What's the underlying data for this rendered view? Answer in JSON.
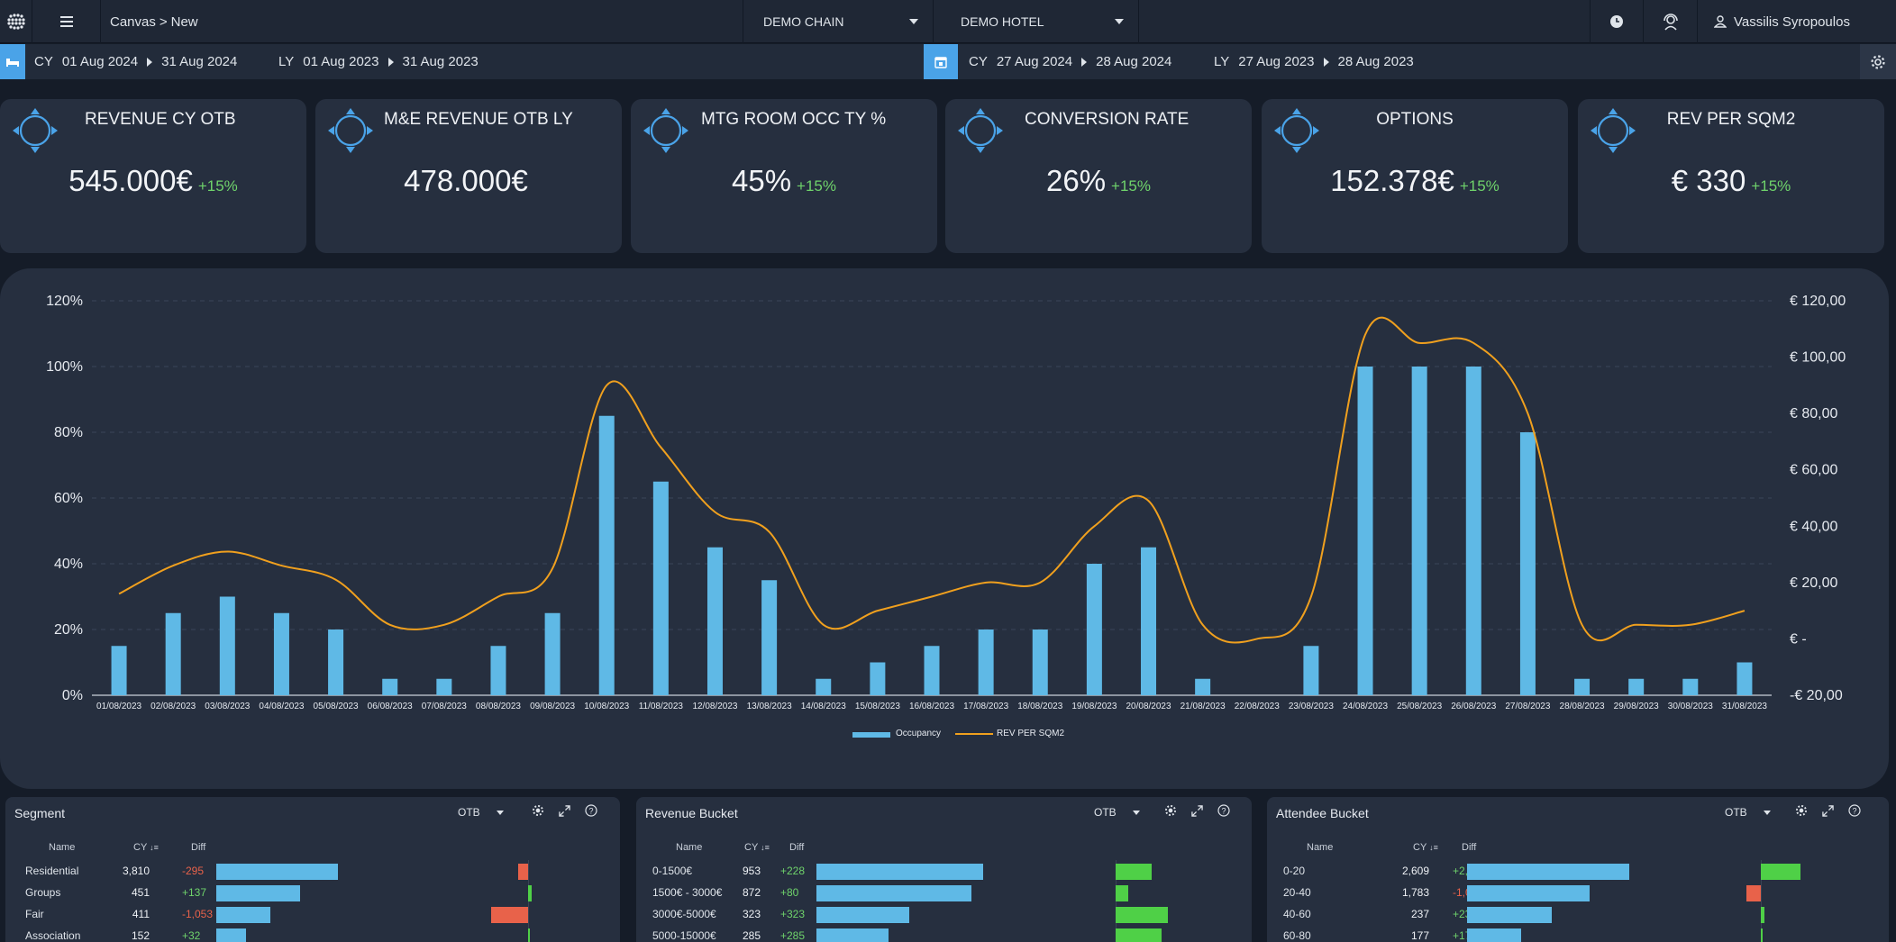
{
  "topbar": {
    "breadcrumb_root": "Canvas",
    "breadcrumb_sep": ">",
    "breadcrumb_current": "New",
    "chain_select": "DEMO CHAIN",
    "hotel_select": "DEMO HOTEL",
    "user_name": "Vassilis Syropoulos"
  },
  "datebar": {
    "left": {
      "cy_label": "CY",
      "cy_from": "01 Aug 2024",
      "cy_to": "31 Aug 2024",
      "ly_label": "LY",
      "ly_from": "01 Aug 2023",
      "ly_to": "31 Aug 2023"
    },
    "right": {
      "cy_label": "CY",
      "cy_from": "27 Aug 2024",
      "cy_to": "28 Aug 2024",
      "ly_label": "LY",
      "ly_from": "27 Aug 2023",
      "ly_to": "28 Aug 2023"
    }
  },
  "kpis": [
    {
      "label": "REVENUE CY OTB",
      "value": "545.000€",
      "change": "+15%"
    },
    {
      "label": "M&E REVENUE OTB LY",
      "value": "478.000€",
      "change": ""
    },
    {
      "label": "MTG ROOM OCC TY %",
      "value": "45%",
      "change": "+15%"
    },
    {
      "label": "CONVERSION RATE",
      "value": "26%",
      "change": "+15%"
    },
    {
      "label": "OPTIONS",
      "value": "152.378€",
      "change": "+15%"
    },
    {
      "label": "REV PER SQM2",
      "value": "€ 330",
      "change": "+15%"
    }
  ],
  "chart_data": {
    "type": "bar",
    "categories": [
      "01/08/2023",
      "02/08/2023",
      "03/08/2023",
      "04/08/2023",
      "05/08/2023",
      "06/08/2023",
      "07/08/2023",
      "08/08/2023",
      "09/08/2023",
      "10/08/2023",
      "11/08/2023",
      "12/08/2023",
      "13/08/2023",
      "14/08/2023",
      "15/08/2023",
      "16/08/2023",
      "17/08/2023",
      "18/08/2023",
      "19/08/2023",
      "20/08/2023",
      "21/08/2023",
      "22/08/2023",
      "23/08/2023",
      "24/08/2023",
      "25/08/2023",
      "26/08/2023",
      "27/08/2023",
      "28/08/2023",
      "29/08/2023",
      "30/08/2023",
      "31/08/2023"
    ],
    "series": [
      {
        "name": "Occupancy",
        "type": "bar",
        "axis": "left",
        "color": "#5fb9e6",
        "values": [
          15,
          25,
          30,
          25,
          20,
          5,
          5,
          15,
          25,
          85,
          65,
          45,
          35,
          5,
          10,
          15,
          20,
          20,
          40,
          45,
          5,
          0,
          15,
          100,
          100,
          100,
          80,
          5,
          5,
          5,
          10
        ]
      },
      {
        "name": "REV PER SQM2",
        "type": "line",
        "axis": "right",
        "color": "#f0a01e",
        "values": [
          16,
          26,
          31,
          26,
          21,
          5,
          5,
          15,
          25,
          90,
          68,
          45,
          38,
          5,
          10,
          15,
          20,
          20,
          40,
          49,
          5,
          0,
          15,
          108,
          105,
          105,
          80,
          5,
          5,
          5,
          10
        ]
      }
    ],
    "y_left": {
      "ticks": [
        "0%",
        "20%",
        "40%",
        "60%",
        "80%",
        "100%",
        "120%"
      ],
      "range": [
        0,
        120
      ]
    },
    "y_right": {
      "ticks": [
        "-€ 20,00",
        "€ -",
        "€ 20,00",
        "€ 40,00",
        "€ 60,00",
        "€ 80,00",
        "€ 100,00",
        "€ 120,00"
      ],
      "range": [
        -20,
        120
      ]
    },
    "grid": true,
    "legend": "bottom-center"
  },
  "panels": [
    {
      "title": "Segment",
      "mode": "OTB",
      "headers": {
        "name": "Name",
        "cy": "CY",
        "diff": "Diff"
      },
      "rows": [
        {
          "name": "Residential",
          "cy": "3,810",
          "diff": "-295",
          "bar": 0.9,
          "dbar": -0.15
        },
        {
          "name": "Groups",
          "cy": "451",
          "diff": "+137",
          "bar": 0.62,
          "dbar": 0.05
        },
        {
          "name": "Fair",
          "cy": "411",
          "diff": "-1,053",
          "bar": 0.4,
          "dbar": -0.55
        },
        {
          "name": "Association",
          "cy": "152",
          "diff": "+32",
          "bar": 0.22,
          "dbar": 0.0
        }
      ]
    },
    {
      "title": "Revenue Bucket",
      "mode": "OTB",
      "headers": {
        "name": "Name",
        "cy": "CY",
        "diff": "Diff"
      },
      "rows": [
        {
          "name": "0-1500€",
          "cy": "953",
          "diff": "+228",
          "bar": 0.9,
          "dbar": 0.5
        },
        {
          "name": "1500€ - 3000€",
          "cy": "872",
          "diff": "+80",
          "bar": 0.84,
          "dbar": 0.18
        },
        {
          "name": "3000€-5000€",
          "cy": "323",
          "diff": "+323",
          "bar": 0.5,
          "dbar": 0.72
        },
        {
          "name": "5000-15000€",
          "cy": "285",
          "diff": "+285",
          "bar": 0.39,
          "dbar": 0.64
        }
      ]
    },
    {
      "title": "Attendee Bucket",
      "mode": "OTB",
      "headers": {
        "name": "Name",
        "cy": "CY",
        "diff": "Diff"
      },
      "rows": [
        {
          "name": "0-20",
          "cy": "2,609",
          "diff": "+2,609",
          "bar": 0.9,
          "dbar": 0.55
        },
        {
          "name": "20-40",
          "cy": "1,783",
          "diff": "-1,025",
          "bar": 0.68,
          "dbar": -0.2
        },
        {
          "name": "40-60",
          "cy": "237",
          "diff": "+237",
          "bar": 0.47,
          "dbar": 0.05
        },
        {
          "name": "60-80",
          "cy": "177",
          "diff": "+177",
          "bar": 0.3,
          "dbar": 0.03
        }
      ]
    }
  ],
  "colors": {
    "bg": "#151c28",
    "card": "#262f3f",
    "accent": "#4aa3e8",
    "bar": "#5fb9e6",
    "line": "#f0a01e",
    "pos": "#6fd36b",
    "neg": "#e8624a",
    "posbar": "#4fd047"
  }
}
